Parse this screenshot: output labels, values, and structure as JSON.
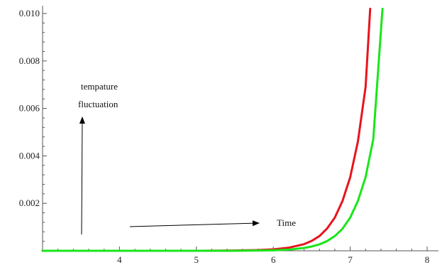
{
  "chart_data": {
    "type": "line",
    "title": "",
    "xlabel": "",
    "ylabel": "",
    "xlim": [
      3,
      8
    ],
    "ylim": [
      0,
      0.0102
    ],
    "x_ticks": [
      4,
      5,
      6,
      7,
      8
    ],
    "x_tick_labels": [
      "4",
      "5",
      "6",
      "7",
      "8"
    ],
    "y_ticks": [
      0.002,
      0.004,
      0.006,
      0.008,
      0.01
    ],
    "y_tick_labels": [
      "0.002",
      "0.004",
      "0.006",
      "0.008",
      "0.010"
    ],
    "grid": false,
    "legend": "none",
    "series": [
      {
        "color": "#e8141c",
        "x": [
          3.0,
          4.0,
          5.0,
          5.5,
          5.8,
          6.0,
          6.2,
          6.4,
          6.5,
          6.6,
          6.7,
          6.8,
          6.9,
          7.0,
          7.1,
          7.2,
          7.26
        ],
        "y": [
          0.0,
          0.0,
          0.0,
          1e-05,
          3e-05,
          6e-05,
          0.00013,
          0.00028,
          0.00042,
          0.00062,
          0.00094,
          0.0014,
          0.0021,
          0.0031,
          0.0046,
          0.0069,
          0.0102
        ]
      },
      {
        "color": "#19e619",
        "x": [
          3.0,
          4.0,
          5.0,
          5.5,
          6.0,
          6.2,
          6.4,
          6.5,
          6.6,
          6.7,
          6.8,
          6.9,
          7.0,
          7.1,
          7.2,
          7.3,
          7.42
        ],
        "y": [
          0.0,
          0.0,
          0.0,
          0.0,
          2e-05,
          5e-05,
          0.00012,
          0.00018,
          0.00027,
          0.00041,
          0.00062,
          0.00093,
          0.0014,
          0.0021,
          0.0031,
          0.0047,
          0.0102
        ]
      }
    ],
    "annotations": [
      {
        "text": "tempature",
        "kind": "label"
      },
      {
        "text": "fluctuation",
        "kind": "label"
      },
      {
        "text": "Time",
        "kind": "label"
      }
    ]
  }
}
